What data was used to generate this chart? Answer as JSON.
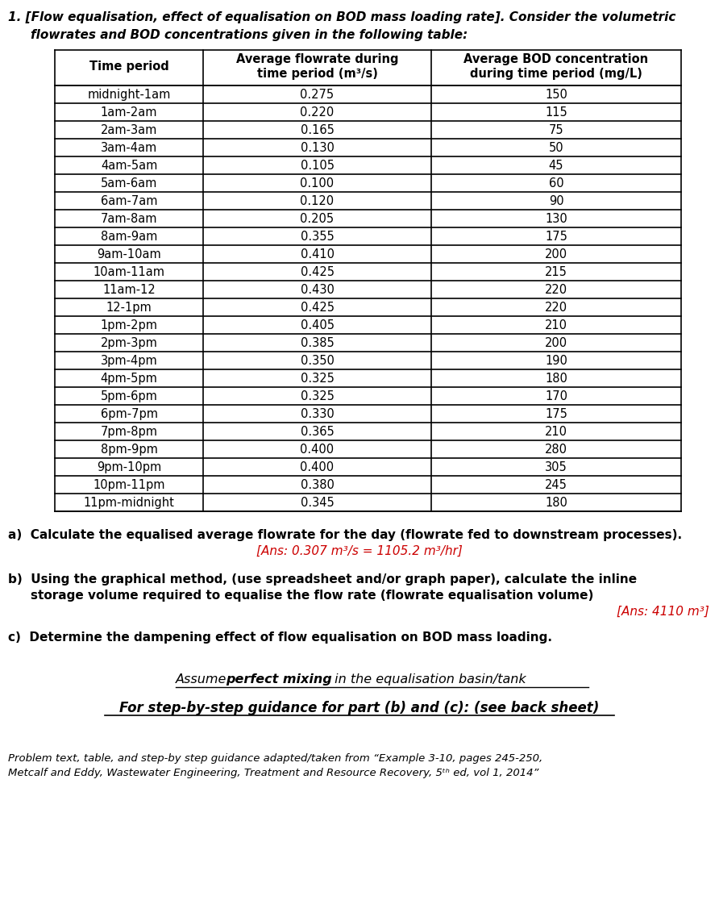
{
  "time_periods": [
    "midnight-1am",
    "1am-2am",
    "2am-3am",
    "3am-4am",
    "4am-5am",
    "5am-6am",
    "6am-7am",
    "7am-8am",
    "8am-9am",
    "9am-10am",
    "10am-11am",
    "11am-12",
    "12-1pm",
    "1pm-2pm",
    "2pm-3pm",
    "3pm-4pm",
    "4pm-5pm",
    "5pm-6pm",
    "6pm-7pm",
    "7pm-8pm",
    "8pm-9pm",
    "9pm-10pm",
    "10pm-11pm",
    "11pm-midnight"
  ],
  "flowrates": [
    0.275,
    0.22,
    0.165,
    0.13,
    0.105,
    0.1,
    0.12,
    0.205,
    0.355,
    0.41,
    0.425,
    0.43,
    0.425,
    0.405,
    0.385,
    0.35,
    0.325,
    0.325,
    0.33,
    0.365,
    0.4,
    0.4,
    0.38,
    0.345
  ],
  "bod_concentrations": [
    150,
    115,
    75,
    50,
    45,
    60,
    90,
    130,
    175,
    200,
    215,
    220,
    220,
    210,
    200,
    190,
    180,
    170,
    175,
    210,
    280,
    305,
    245,
    180
  ],
  "ans_color": "#cc0000",
  "bg_color": "#ffffff",
  "text_color": "#000000",
  "fig_width": 8.92,
  "fig_height": 11.42,
  "dpi": 100
}
